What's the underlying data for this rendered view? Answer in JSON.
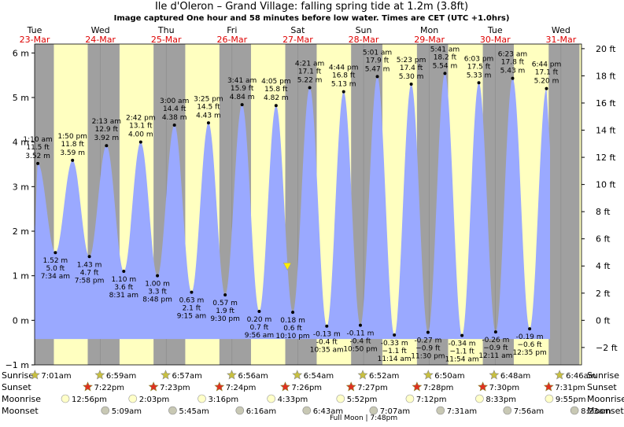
{
  "title": "Ile d'Oleron – Grand Village: falling  spring tide at 1.2m (3.8ft)",
  "subtitle": "Image captured One hour and 58 minutes before low water. Times are CET (UTC +1.0hrs)",
  "colors": {
    "water": "#9aa9ff",
    "night": "#a0a0a0",
    "day": "#ffffc0",
    "red": "#dd0000"
  },
  "chart_data": {
    "type": "area",
    "title": "Ile d'Oleron – Grand Village: falling  spring tide at 1.2m (3.8ft)",
    "y_left": {
      "unit": "m",
      "range": [
        -1,
        6.2
      ],
      "ticks": [
        "−1 m",
        "0 m",
        "1 m",
        "2 m",
        "3 m",
        "4 m",
        "5 m",
        "6 m"
      ]
    },
    "y_right": {
      "unit": "ft",
      "ticks": [
        "−2 ft",
        "0 ft",
        "2 ft",
        "4 ft",
        "6 ft",
        "8 ft",
        "10 ft",
        "12 ft",
        "14 ft",
        "16 ft",
        "18 ft",
        "20 ft"
      ]
    },
    "x_range_hours": [
      0,
      199.5
    ],
    "day_headers": [
      {
        "d": "Tue",
        "date": "23-Mar",
        "h": 0
      },
      {
        "d": "Wed",
        "date": "24-Mar",
        "h": 24
      },
      {
        "d": "Thu",
        "date": "25-Mar",
        "h": 48
      },
      {
        "d": "Fri",
        "date": "26-Mar",
        "h": 72
      },
      {
        "d": "Sat",
        "date": "27-Mar",
        "h": 96
      },
      {
        "d": "Sun",
        "date": "28-Mar",
        "h": 120
      },
      {
        "d": "Mon",
        "date": "29-Mar",
        "h": 144
      },
      {
        "d": "Tue",
        "date": "30-Mar",
        "h": 168
      },
      {
        "d": "Wed",
        "date": "31-Mar",
        "h": 192
      }
    ],
    "daylight": [
      [
        -7,
        -4.7
      ],
      [
        7.02,
        19.37
      ],
      [
        30.98,
        43.38
      ],
      [
        54.95,
        67.4
      ],
      [
        78.93,
        91.43
      ],
      [
        102.9,
        115.45
      ],
      [
        126.87,
        139.47
      ],
      [
        150.83,
        163.5
      ],
      [
        174.8,
        187.52
      ],
      [
        198.77,
        211.53
      ]
    ],
    "extremes": [
      {
        "t": "1:10 am",
        "ft": "11.5 ft",
        "m": 3.52,
        "h": 1.17,
        "type": "high"
      },
      {
        "t": "7:34 am",
        "ft": "5.0 ft",
        "m": 1.52,
        "h": 7.57,
        "type": "low"
      },
      {
        "t": "1:50 pm",
        "ft": "11.8 ft",
        "m": 3.59,
        "h": 13.83,
        "type": "high"
      },
      {
        "t": "7:58 pm",
        "ft": "4.7 ft",
        "m": 1.43,
        "h": 19.97,
        "type": "low"
      },
      {
        "t": "2:13 am",
        "ft": "12.9 ft",
        "m": 3.92,
        "h": 26.22,
        "type": "high"
      },
      {
        "t": "8:31 am",
        "ft": "3.6 ft",
        "m": 1.1,
        "h": 32.52,
        "type": "low"
      },
      {
        "t": "2:42 pm",
        "ft": "13.1 ft",
        "m": 4.0,
        "h": 38.7,
        "type": "high"
      },
      {
        "t": "8:48 pm",
        "ft": "3.3 ft",
        "m": 1.0,
        "h": 44.8,
        "type": "low"
      },
      {
        "t": "3:00 am",
        "ft": "14.4 ft",
        "m": 4.38,
        "h": 51.0,
        "type": "high"
      },
      {
        "t": "9:15 am",
        "ft": "2.1 ft",
        "m": 0.63,
        "h": 57.25,
        "type": "low"
      },
      {
        "t": "3:25 pm",
        "ft": "14.5 ft",
        "m": 4.43,
        "h": 63.42,
        "type": "high"
      },
      {
        "t": "9:30 pm",
        "ft": "1.9 ft",
        "m": 0.57,
        "h": 69.5,
        "type": "low"
      },
      {
        "t": "3:41 am",
        "ft": "15.9 ft",
        "m": 4.84,
        "h": 75.68,
        "type": "high"
      },
      {
        "t": "9:56 am",
        "ft": "0.7 ft",
        "m": 0.2,
        "h": 81.93,
        "type": "low"
      },
      {
        "t": "4:05 pm",
        "ft": "15.8 ft",
        "m": 4.82,
        "h": 88.08,
        "type": "high"
      },
      {
        "t": "10:10 pm",
        "ft": "0.6 ft",
        "m": 0.18,
        "h": 94.17,
        "type": "low"
      },
      {
        "t": "4:21 am",
        "ft": "17.1 ft",
        "m": 5.22,
        "h": 100.35,
        "type": "high"
      },
      {
        "t": "10:35 am",
        "ft": "-0.4 ft",
        "m": -0.13,
        "h": 106.58,
        "type": "low"
      },
      {
        "t": "4:44 pm",
        "ft": "16.8 ft",
        "m": 5.13,
        "h": 112.73,
        "type": "high"
      },
      {
        "t": "10:50 pm",
        "ft": "-0.4 ft",
        "m": -0.11,
        "h": 118.83,
        "type": "low"
      },
      {
        "t": "5:01 am",
        "ft": "17.9 ft",
        "m": 5.47,
        "h": 125.02,
        "type": "high"
      },
      {
        "t": "11:14 am",
        "ft": "−1.1 ft",
        "m": -0.33,
        "h": 131.23,
        "type": "low"
      },
      {
        "t": "5:23 pm",
        "ft": "17.4 ft",
        "m": 5.3,
        "h": 137.38,
        "type": "high"
      },
      {
        "t": "11:30 pm",
        "ft": "−0.9 ft",
        "m": -0.27,
        "h": 143.5,
        "type": "low"
      },
      {
        "t": "5:41 am",
        "ft": "18.2 ft",
        "m": 5.54,
        "h": 149.68,
        "type": "high"
      },
      {
        "t": "11:54 am",
        "ft": "−1.1 ft",
        "m": -0.34,
        "h": 155.9,
        "type": "low"
      },
      {
        "t": "6:03 pm",
        "ft": "17.5 ft",
        "m": 5.33,
        "h": 162.05,
        "type": "high"
      },
      {
        "t": "12:11 am",
        "ft": "−0.9 ft",
        "m": -0.26,
        "h": 168.18,
        "type": "low"
      },
      {
        "t": "6:23 am",
        "ft": "17.8 ft",
        "m": 5.43,
        "h": 174.38,
        "type": "high"
      },
      {
        "t": "12:35 pm",
        "ft": "−0.6 ft",
        "m": -0.19,
        "h": 180.58,
        "type": "low"
      },
      {
        "t": "6:44 pm",
        "ft": "17.1 ft",
        "m": 5.2,
        "h": 186.73,
        "type": "high"
      }
    ],
    "now": {
      "h": 92.2,
      "m": 1.2
    },
    "rows": {
      "Sunrise": [
        "7:01am",
        "6:59am",
        "6:57am",
        "6:56am",
        "6:54am",
        "6:52am",
        "6:50am",
        "6:48am",
        "6:46am"
      ],
      "Sunset": [
        "7:22pm",
        "7:23pm",
        "7:24pm",
        "7:26pm",
        "7:27pm",
        "7:28pm",
        "7:30pm",
        "7:31pm"
      ],
      "Moonrise": [
        "12:56pm",
        "2:03pm",
        "3:16pm",
        "4:33pm",
        "5:52pm",
        "7:12pm",
        "8:33pm",
        "9:55pm"
      ],
      "Moonset": [
        "5:09am",
        "5:45am",
        "6:16am",
        "6:43am",
        "7:07am",
        "7:31am",
        "7:56am",
        "8:23am"
      ]
    },
    "full_moon": "Full Moon | 7:48pm"
  }
}
